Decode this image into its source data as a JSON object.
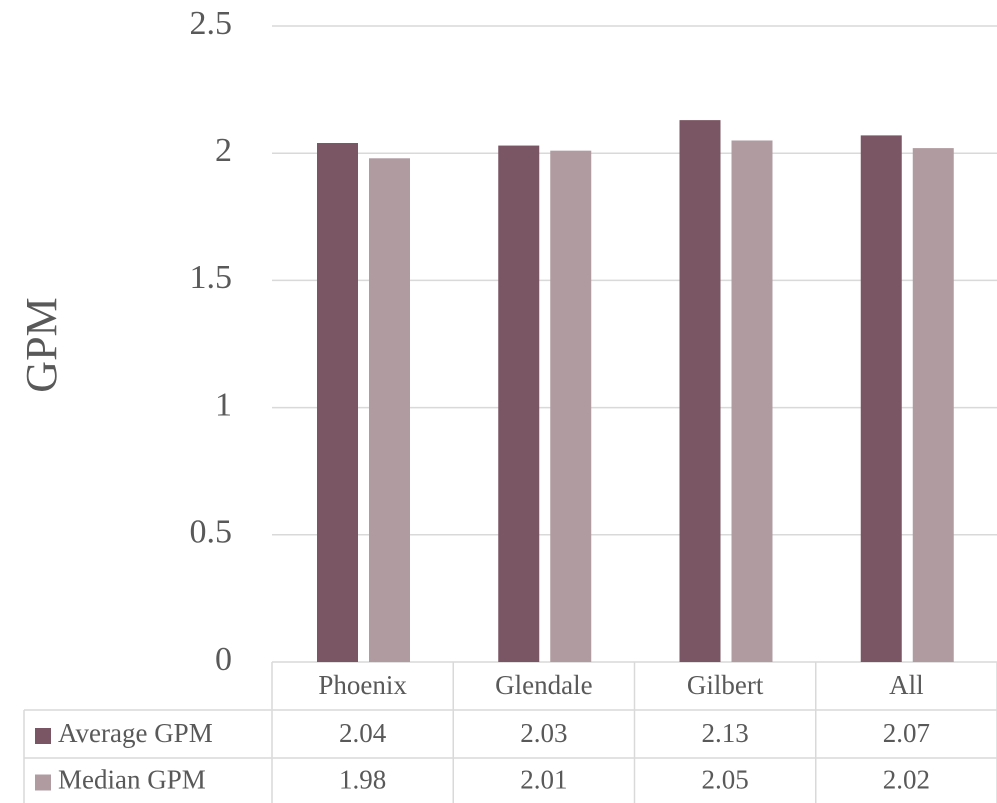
{
  "chart_data": {
    "type": "bar",
    "y_label": "GPM",
    "categories": [
      "Phoenix",
      "Glendale",
      "Gilbert",
      "All"
    ],
    "series": [
      {
        "name": "Average GPM",
        "color": "#7a5563",
        "values": [
          2.04,
          2.03,
          2.13,
          2.07
        ]
      },
      {
        "name": "Median GPM",
        "color": "#b09ba1",
        "values": [
          1.98,
          2.01,
          2.05,
          2.02
        ]
      }
    ],
    "ylim": [
      0,
      2.5
    ],
    "yticks": [
      0,
      0.5,
      1,
      1.5,
      2,
      2.5
    ],
    "grid": true
  }
}
